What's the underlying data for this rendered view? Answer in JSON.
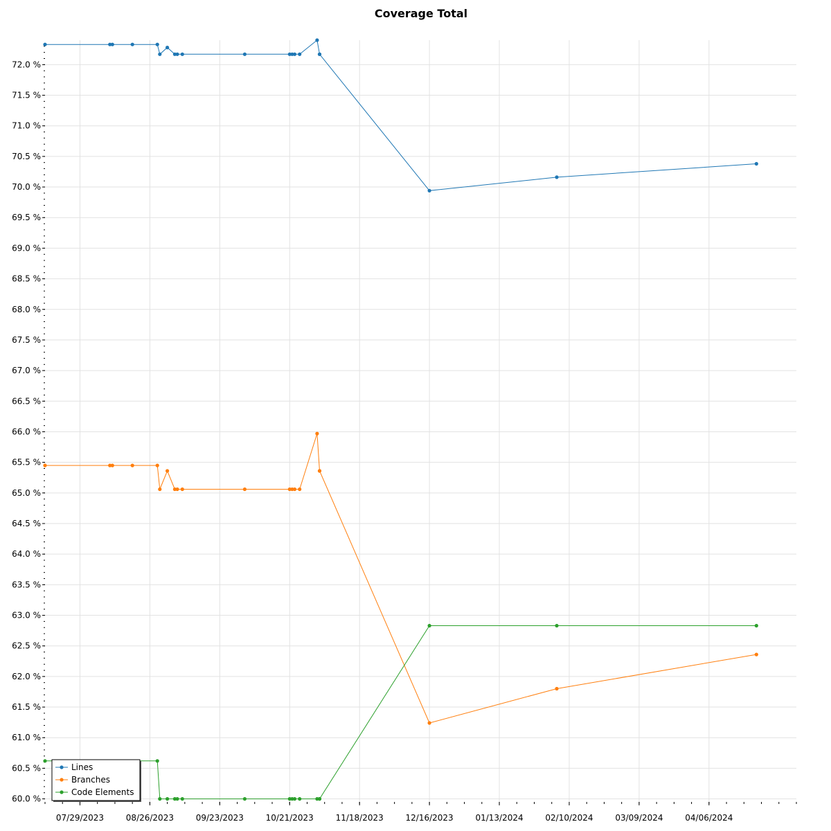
{
  "chart_data": {
    "type": "line",
    "title": "Coverage Total",
    "xlabel": "",
    "ylabel": "",
    "x_ticks": [
      "07/29/2023",
      "08/26/2023",
      "09/23/2023",
      "10/21/2023",
      "11/18/2023",
      "12/16/2023",
      "01/13/2024",
      "02/10/2024",
      "03/09/2024",
      "04/06/2024"
    ],
    "y_ticks": [
      "60.0 %",
      "60.5 %",
      "61.0 %",
      "61.5 %",
      "62.0 %",
      "62.5 %",
      "63.0 %",
      "63.5 %",
      "64.0 %",
      "64.5 %",
      "65.0 %",
      "65.5 %",
      "66.0 %",
      "66.5 %",
      "67.0 %",
      "67.5 %",
      "68.0 %",
      "68.5 %",
      "69.0 %",
      "69.5 %",
      "70.0 %",
      "70.5 %",
      "71.0 %",
      "71.5 %",
      "72.0 %"
    ],
    "xlim": [
      "2023-07-15",
      "2024-05-11"
    ],
    "ylim": [
      59.95,
      72.4
    ],
    "grid": true,
    "legend_position": "bottom-left",
    "series": [
      {
        "name": "Lines",
        "color": "#1f77b4",
        "points": [
          [
            "2023-07-15",
            72.33
          ],
          [
            "2023-08-10",
            72.33
          ],
          [
            "2023-08-11",
            72.33
          ],
          [
            "2023-08-19",
            72.33
          ],
          [
            "2023-08-29",
            72.33
          ],
          [
            "2023-08-30",
            72.17
          ],
          [
            "2023-09-02",
            72.28
          ],
          [
            "2023-09-05",
            72.17
          ],
          [
            "2023-09-06",
            72.17
          ],
          [
            "2023-09-08",
            72.17
          ],
          [
            "2023-10-03",
            72.17
          ],
          [
            "2023-10-21",
            72.17
          ],
          [
            "2023-10-22",
            72.17
          ],
          [
            "2023-10-23",
            72.17
          ],
          [
            "2023-10-25",
            72.17
          ],
          [
            "2023-11-01",
            72.4
          ],
          [
            "2023-11-02",
            72.17
          ],
          [
            "2023-11-02",
            72.17
          ],
          [
            "2023-12-16",
            69.94
          ],
          [
            "2024-02-05",
            70.16
          ],
          [
            "2024-04-25",
            70.38
          ]
        ]
      },
      {
        "name": "Branches",
        "color": "#ff7f0e",
        "points": [
          [
            "2023-07-15",
            65.45
          ],
          [
            "2023-08-10",
            65.45
          ],
          [
            "2023-08-11",
            65.45
          ],
          [
            "2023-08-19",
            65.45
          ],
          [
            "2023-08-29",
            65.45
          ],
          [
            "2023-08-30",
            65.06
          ],
          [
            "2023-09-02",
            65.36
          ],
          [
            "2023-09-05",
            65.06
          ],
          [
            "2023-09-06",
            65.06
          ],
          [
            "2023-09-08",
            65.06
          ],
          [
            "2023-10-03",
            65.06
          ],
          [
            "2023-10-21",
            65.06
          ],
          [
            "2023-10-22",
            65.06
          ],
          [
            "2023-10-23",
            65.06
          ],
          [
            "2023-10-25",
            65.06
          ],
          [
            "2023-11-01",
            65.97
          ],
          [
            "2023-11-02",
            65.36
          ],
          [
            "2023-11-02",
            65.36
          ],
          [
            "2023-12-16",
            61.24
          ],
          [
            "2024-02-05",
            61.8
          ],
          [
            "2024-04-25",
            62.36
          ]
        ]
      },
      {
        "name": "Code Elements",
        "color": "#2ca02c",
        "points": [
          [
            "2023-07-15",
            60.62
          ],
          [
            "2023-08-29",
            60.62
          ],
          [
            "2023-08-30",
            60.0
          ],
          [
            "2023-09-02",
            60.0
          ],
          [
            "2023-09-05",
            60.0
          ],
          [
            "2023-09-06",
            60.0
          ],
          [
            "2023-09-08",
            60.0
          ],
          [
            "2023-10-03",
            60.0
          ],
          [
            "2023-10-21",
            60.0
          ],
          [
            "2023-10-22",
            60.0
          ],
          [
            "2023-10-23",
            60.0
          ],
          [
            "2023-10-25",
            60.0
          ],
          [
            "2023-11-01",
            60.0
          ],
          [
            "2023-11-02",
            60.0
          ],
          [
            "2023-11-02",
            60.0
          ],
          [
            "2023-12-16",
            62.83
          ],
          [
            "2024-02-05",
            62.83
          ],
          [
            "2024-04-25",
            62.83
          ]
        ]
      }
    ]
  }
}
